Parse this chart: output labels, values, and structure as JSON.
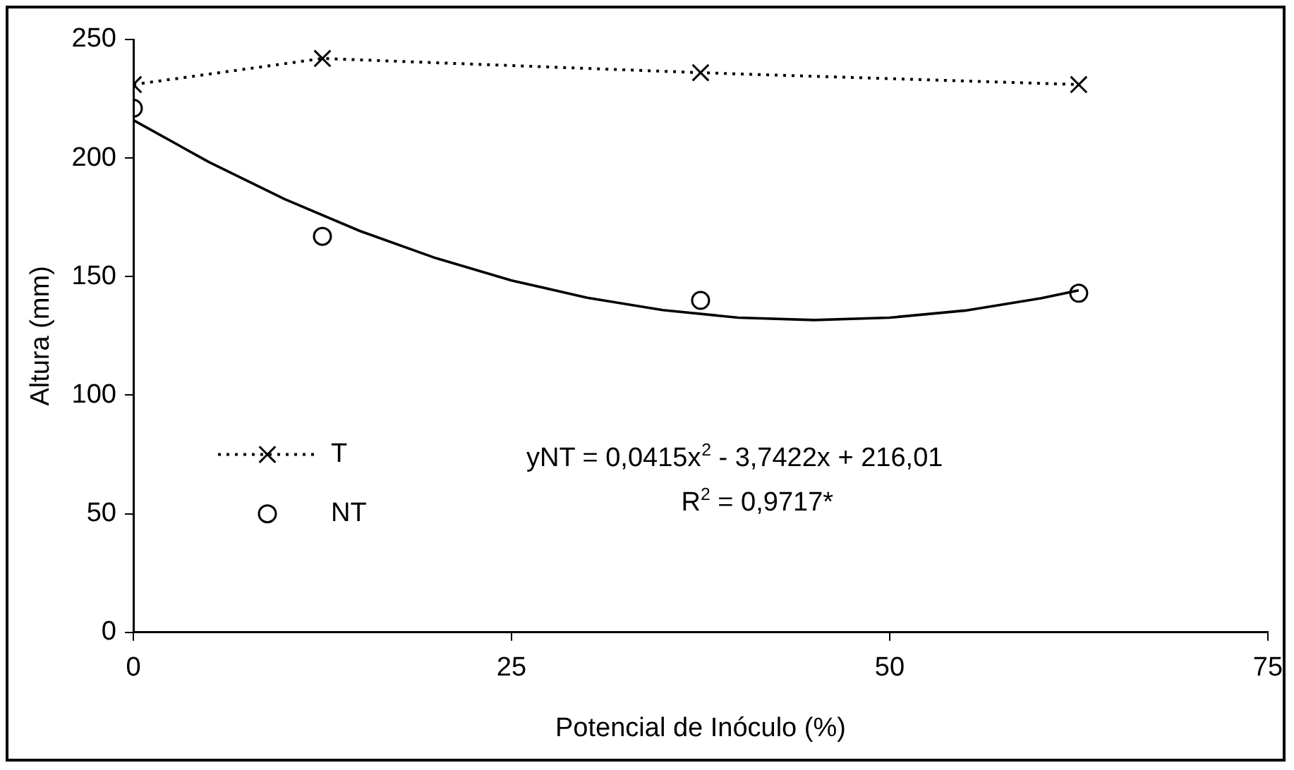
{
  "chart_data": {
    "type": "scatter",
    "xlabel": "Potencial de Inóculo (%)",
    "ylabel": "Altura (mm)",
    "xlim": [
      0,
      75
    ],
    "xticks": [
      0,
      25,
      50,
      75
    ],
    "ylim": [
      0,
      250
    ],
    "yticks": [
      0,
      50,
      100,
      150,
      200,
      250
    ],
    "grid": false,
    "legend": "left",
    "series": [
      {
        "name": "T",
        "type": "line",
        "color": "#000000",
        "marker": "cross",
        "line_style": "dotted",
        "x": [
          0,
          12.5,
          37.5,
          62.5
        ],
        "values": [
          231,
          242,
          236,
          231
        ]
      },
      {
        "name": "NT",
        "color": "#000000",
        "marker": "circle",
        "x": [
          0,
          12.5,
          37.5,
          62.5
        ],
        "values": [
          221,
          167,
          140,
          143
        ]
      },
      {
        "type": "line",
        "color": "#000000",
        "marker": "none",
        "line_style": "solid",
        "x": [
          0,
          5,
          10,
          15,
          20,
          25,
          30,
          35,
          40,
          45,
          50,
          55,
          60,
          62.5
        ],
        "values": [
          216.0,
          198.3,
          182.7,
          169.2,
          157.8,
          148.4,
          141.1,
          135.9,
          132.7,
          131.7,
          132.7,
          135.7,
          140.9,
          144.2
        ]
      }
    ],
    "annotations": [
      "yNT = 0,0415x$^{2}$ - 3,7422x + 216,01",
      "R$^{2}$ = 0,9717*"
    ]
  }
}
